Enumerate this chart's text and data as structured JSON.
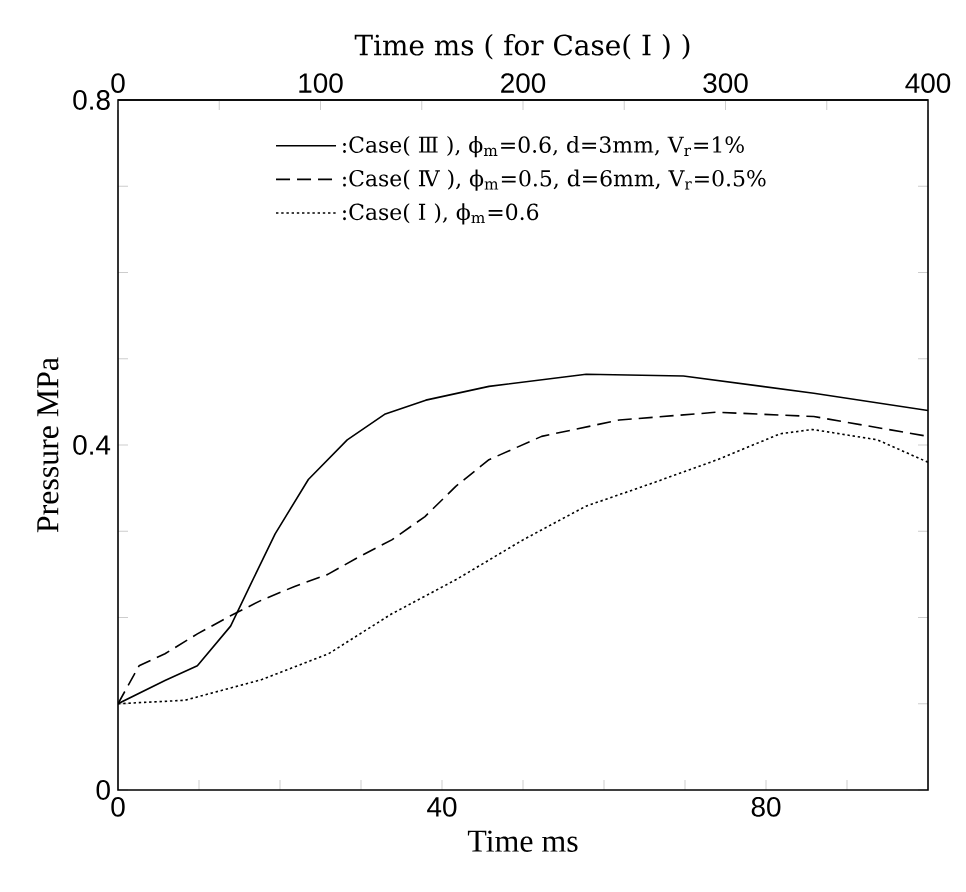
{
  "chart_data": {
    "type": "line",
    "xlabel": "Time  ms",
    "x2label": "Time  ms ( for Case( Ⅰ ) )",
    "ylabel": "Pressure  MPa",
    "xlim": [
      0,
      100
    ],
    "xticks": [
      0,
      {
        "value": 10,
        "label": null
      },
      {
        "value": 20,
        "label": null
      },
      {
        "value": 30,
        "label": null
      },
      40,
      {
        "value": 50,
        "label": null
      },
      {
        "value": 60,
        "label": null
      },
      {
        "value": 70,
        "label": null
      },
      80,
      {
        "value": 90,
        "label": null
      }
    ],
    "x2lim": [
      0,
      400
    ],
    "x2ticks": [
      0,
      {
        "value": 50,
        "label": null
      },
      100,
      {
        "value": 150,
        "label": null
      },
      200,
      {
        "value": 250,
        "label": null
      },
      300,
      {
        "value": 350,
        "label": null
      },
      400
    ],
    "ylim": [
      0,
      0.8
    ],
    "yticks": [
      0,
      {
        "value": 0.1,
        "label": null
      },
      {
        "value": 0.2,
        "label": null
      },
      {
        "value": 0.3,
        "label": null
      },
      0.4,
      {
        "value": 0.5,
        "label": null
      },
      {
        "value": 0.6,
        "label": null
      },
      {
        "value": 0.7,
        "label": null
      },
      0.8
    ],
    "legend": "top",
    "series": [
      {
        "name": ":Case( Ⅲ ),  ϕ$_{m}$=0.6, d=3mm, V$_{r}$=1%",
        "color": "#000000",
        "line_style": "solid",
        "x": [
          0,
          5.8,
          9.8,
          13.9,
          16.3,
          19.4,
          23.5,
          28.3,
          33,
          38,
          45.8,
          57.8,
          69.8,
          85.9,
          100
        ],
        "values": [
          0.1,
          0.127,
          0.144,
          0.19,
          0.237,
          0.297,
          0.36,
          0.406,
          0.436,
          0.452,
          0.468,
          0.482,
          0.48,
          0.46,
          0.44
        ]
      },
      {
        "name": ":Case( Ⅳ ),  ϕ$_{m}$=0.5, d=6mm, V$_{r}$=0.5%",
        "color": "#000000",
        "line_style": "dashed",
        "x": [
          0,
          2.6,
          5.8,
          9.8,
          13.9,
          17.7,
          21.8,
          25.9,
          29.7,
          33.8,
          37.9,
          41.7,
          45.8,
          52.3,
          61.9,
          73.9,
          85.9,
          100
        ],
        "values": [
          0.1,
          0.144,
          0.158,
          0.181,
          0.202,
          0.22,
          0.236,
          0.25,
          0.27,
          0.29,
          0.317,
          0.352,
          0.383,
          0.41,
          0.429,
          0.438,
          0.433,
          0.41
        ]
      },
      {
        "name": ":Case(  Ⅰ ),  ϕ$_{m}$=0.6",
        "color": "#000000",
        "line_style": "dotted",
        "axis": "x2",
        "x": [
          0,
          33,
          71,
          104,
          135,
          167,
          200,
          231,
          263,
          296,
          327,
          343,
          375,
          400
        ],
        "values": [
          0.1,
          0.104,
          0.128,
          0.158,
          0.204,
          0.244,
          0.29,
          0.329,
          0.355,
          0.383,
          0.413,
          0.418,
          0.406,
          0.38
        ]
      }
    ]
  }
}
